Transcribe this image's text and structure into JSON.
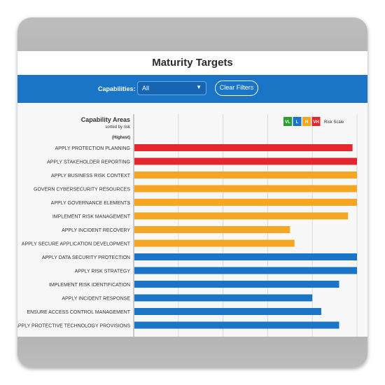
{
  "page": {
    "title": "Maturity Targets"
  },
  "filters": {
    "capabilities_label": "Capabilities:",
    "capabilities_value": "All",
    "clear_label": "Clear Filters"
  },
  "colors": {
    "very_low": "#2ca02c",
    "low": "#1a75c6",
    "high": "#f5a623",
    "very_high": "#e5262f",
    "header_blue": "#1a75c6"
  },
  "risk_scale": {
    "items": [
      {
        "label": "VL",
        "color": "#2ca02c"
      },
      {
        "label": "L",
        "color": "#1a75c6"
      },
      {
        "label": "H",
        "color": "#f5a623"
      },
      {
        "label": "VH",
        "color": "#e5262f"
      }
    ],
    "label": "Risk Scale"
  },
  "chart_data": {
    "type": "bar",
    "orientation": "horizontal",
    "title": "Capability Areas",
    "subtitle": "sorted by risk",
    "sort_note": "(Highest)",
    "xlim": [
      0,
      5
    ],
    "grid": true,
    "legend_position": "top-right",
    "categories": [
      "APPLY PROTECTION PLANNING",
      "APPLY STAKEHOLDER REPORTING",
      "APPLY BUSINESS RISK CONTEXT",
      "GOVERN CYBERSECURITY RESOURCES",
      "APPLY GOVERNANCE ELEMENTS",
      "IMPLEMENT RISK MANAGEMENT",
      "APPLY INCIDENT RECOVERY",
      "APPLY SECURE APPLICATION DEVELOPMENT",
      "APPLY DATA SECURITY PROTECTION",
      "APPLY RISK STRATEGY",
      "IMPLEMENT RISK IDENTIFICATION",
      "APPLY INCIDENT RESPONSE",
      "ENSURE ACCESS CONTROL MANAGEMENT",
      "APPLY PROTECTIVE TECHNOLOGY PROVISIONS"
    ],
    "values": [
      4.9,
      5.0,
      5.0,
      5.0,
      5.0,
      4.8,
      3.5,
      3.6,
      5.0,
      5.0,
      4.6,
      4.0,
      4.2,
      4.6
    ],
    "risk": [
      "VH",
      "VH",
      "H",
      "H",
      "H",
      "H",
      "H",
      "H",
      "L",
      "L",
      "L",
      "L",
      "L",
      "L"
    ]
  }
}
